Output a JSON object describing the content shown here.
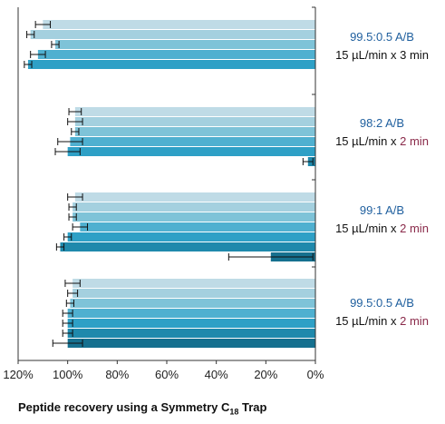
{
  "chart_data": {
    "type": "bar",
    "orientation": "horizontal",
    "x_reversed": true,
    "xlabel": "Peptide recovery using a Symmetry C",
    "xlabel_subscript": "18",
    "xlabel_suffix": " Trap",
    "xlim": [
      0,
      120
    ],
    "x_ticks": [
      "120%",
      "100%",
      "80%",
      "60%",
      "40%",
      "20%",
      "0%"
    ],
    "x_tick_values": [
      120,
      100,
      80,
      60,
      40,
      20,
      0
    ],
    "grid": false,
    "groups": [
      {
        "ratio": "99.5:0.5 A/B",
        "flow": "15 µL/min x ",
        "duration": "3 min",
        "duration_color": "#111111",
        "values": [
          110,
          115,
          105,
          112,
          116
        ],
        "errors": [
          3,
          1.5,
          1.5,
          3,
          1.5
        ]
      },
      {
        "ratio": "98:2 A/B",
        "flow": "15 µL/min x ",
        "duration": "2 min",
        "duration_color": "#8a2a4a",
        "values": [
          97,
          97,
          97,
          99,
          100,
          3
        ],
        "errors": [
          2.5,
          3,
          1.5,
          5,
          5,
          2
        ]
      },
      {
        "ratio": "99:1 A/B",
        "flow": "15 µL/min x ",
        "duration": "2 min",
        "duration_color": "#8a2a4a",
        "values": [
          97,
          98,
          98,
          95,
          100,
          103,
          18
        ],
        "errors": [
          3,
          1.5,
          1.5,
          3,
          1.5,
          1.5,
          17
        ]
      },
      {
        "ratio": "99.5:0.5 A/B",
        "flow": "15 µL/min x ",
        "duration": "2 min",
        "duration_color": "#8a2a4a",
        "values": [
          98,
          98,
          99,
          100,
          100,
          100,
          100
        ],
        "errors": [
          3,
          2,
          1.5,
          2,
          2,
          2,
          6
        ]
      }
    ],
    "bar_colors": [
      "#bfdbe6",
      "#a4d0df",
      "#7ec3d8",
      "#4fb0d0",
      "#2ea0c6",
      "#1f89ac",
      "#15708f"
    ]
  }
}
